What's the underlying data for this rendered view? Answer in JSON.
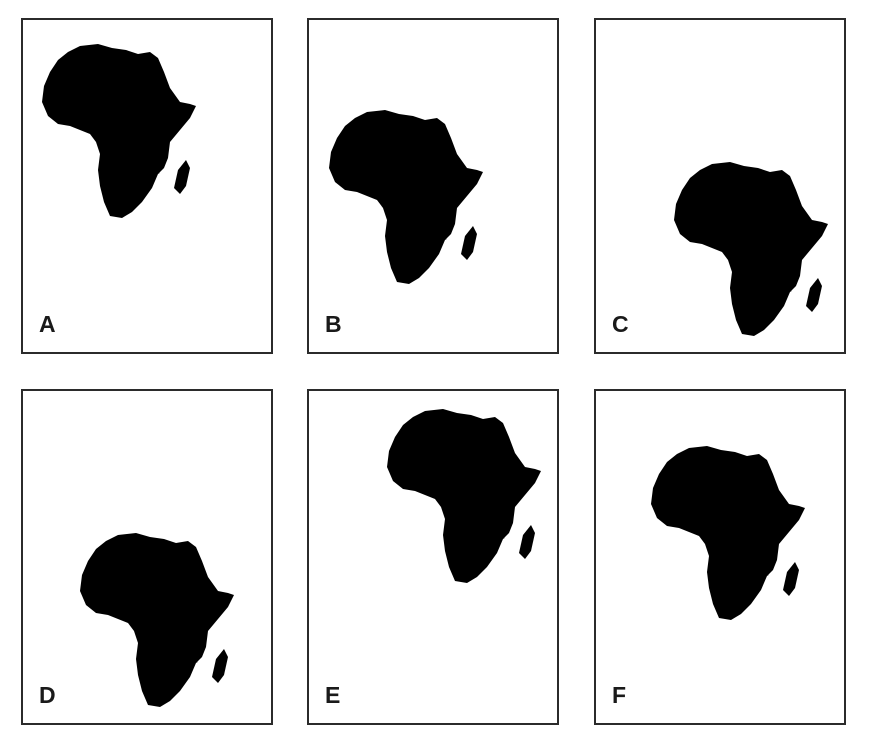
{
  "panels": [
    {
      "label": "A",
      "image": "africa-map"
    },
    {
      "label": "B",
      "image": "africa-map"
    },
    {
      "label": "C",
      "image": "africa-map"
    },
    {
      "label": "D",
      "image": "africa-map"
    },
    {
      "label": "E",
      "image": "africa-map"
    },
    {
      "label": "F",
      "image": "africa-map"
    }
  ],
  "colors": {
    "land": "#3a3a3a",
    "borders": "#bdbdbd",
    "frame": "#2b2b2b",
    "background": "#ffffff"
  }
}
